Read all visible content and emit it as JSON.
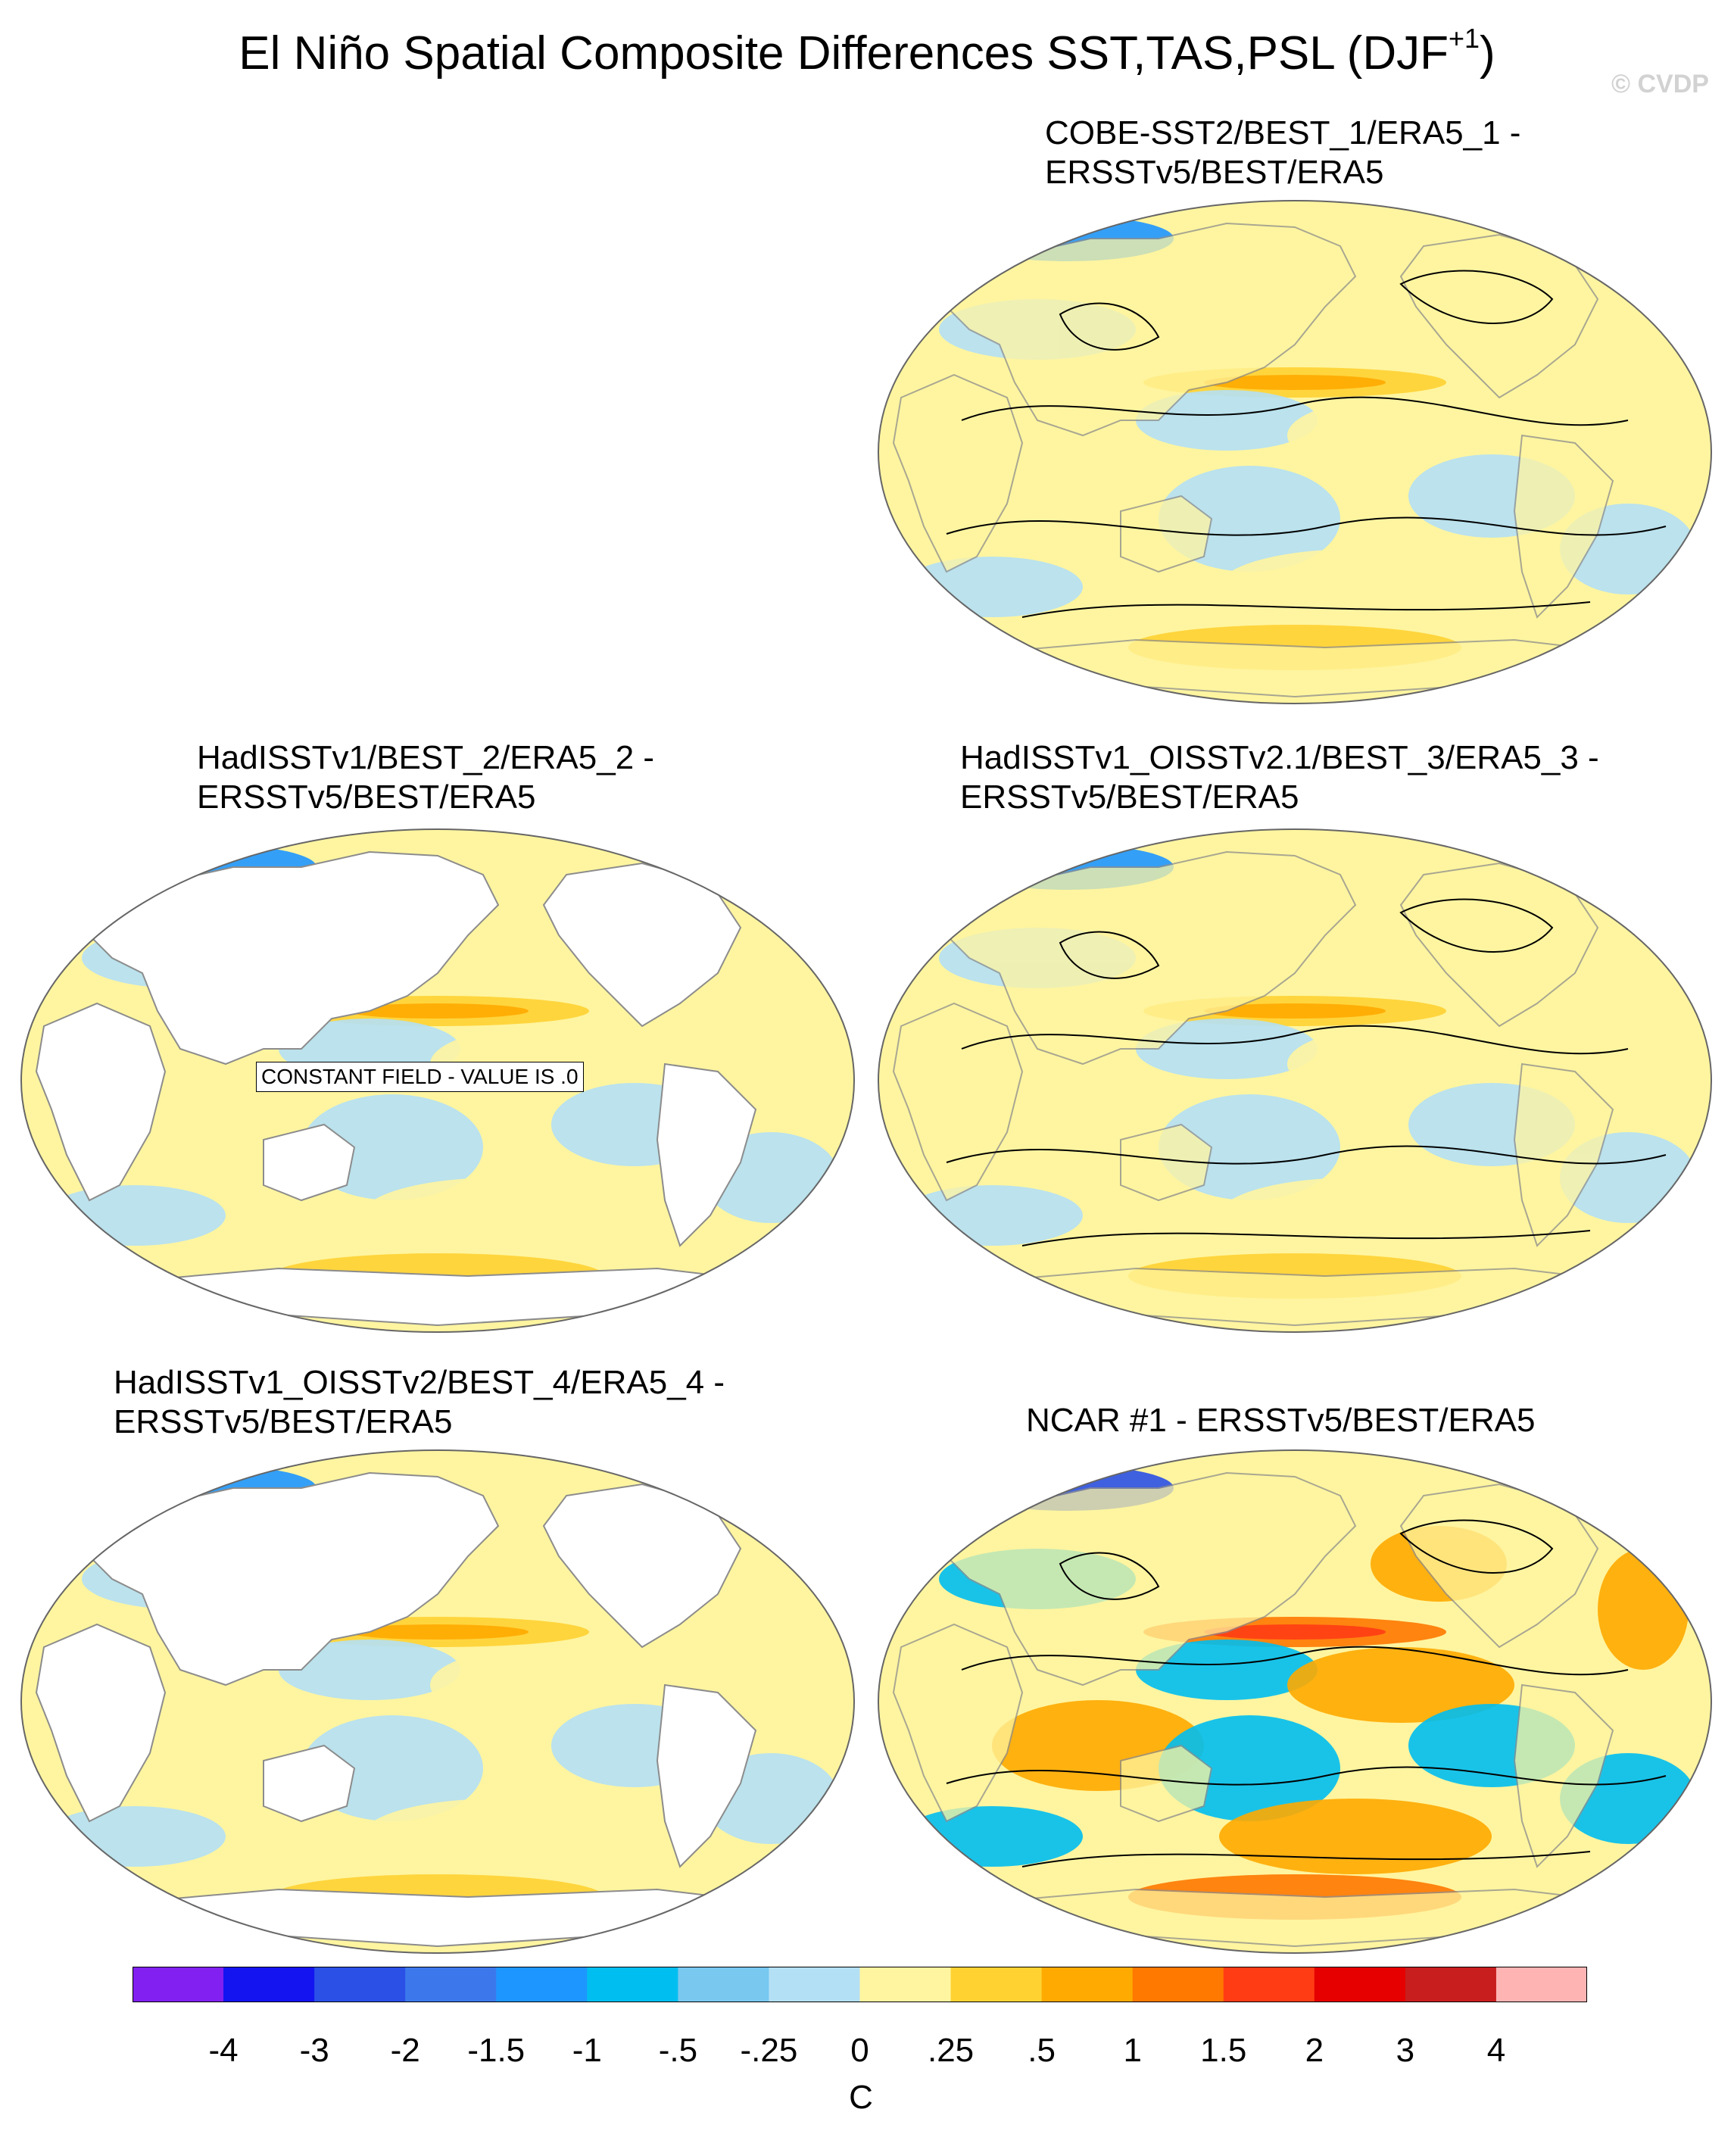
{
  "title": {
    "main": "El Niño Spatial Composite Differences SST,TAS,PSL (DJF",
    "superscript": "+1",
    "close": ")"
  },
  "credit": "© CVDP",
  "panels": [
    {
      "id": "cobe",
      "title_lines": [
        "COBE-SST2/BEST_1/ERA5_1 -",
        "ERSSTv5/BEST/ERA5"
      ],
      "land_filled": true,
      "contours": true,
      "notice": ""
    },
    {
      "id": "hadisst",
      "title_lines": [
        "HadISSTv1/BEST_2/ERA5_2 -",
        "ERSSTv5/BEST/ERA5"
      ],
      "land_filled": false,
      "contours": false,
      "notice": "CONSTANT FIELD - VALUE IS .0"
    },
    {
      "id": "had-oi21",
      "title_lines": [
        "HadISSTv1_OISSTv2.1/BEST_3/ERA5_3 -",
        "ERSSTv5/BEST/ERA5"
      ],
      "land_filled": true,
      "contours": true,
      "notice": ""
    },
    {
      "id": "had-oi2",
      "title_lines": [
        "HadISSTv1_OISSTv2/BEST_4/ERA5_4 -",
        "ERSSTv5/BEST/ERA5"
      ],
      "land_filled": false,
      "contours": false,
      "notice": ""
    },
    {
      "id": "ncar",
      "title_lines": [
        "NCAR #1 - ERSSTv5/BEST/ERA5"
      ],
      "land_filled": true,
      "contours": true,
      "notice": ""
    }
  ],
  "colorbar": {
    "colors": [
      "#8120f0",
      "#1414f0",
      "#2a50e6",
      "#3c78eb",
      "#1e96ff",
      "#00bef0",
      "#78c8f0",
      "#b4e0f5",
      "#fff5a0",
      "#ffd232",
      "#ffaa00",
      "#ff7800",
      "#ff3c14",
      "#e60000",
      "#c81e1e",
      "#ffb4b4"
    ],
    "ticks": [
      "-4",
      "-3",
      "-2",
      "-1.5",
      "-1",
      "-.5",
      "-.25",
      "0",
      ".25",
      ".5",
      "1",
      "1.5",
      "2",
      "3",
      "4"
    ],
    "units": "C"
  },
  "map_colors": {
    "ocean_neutral": "#b4e0f5",
    "ocean_warm": "#fff5a0",
    "land": "#ffffff",
    "coast": "#8c8c8c"
  }
}
